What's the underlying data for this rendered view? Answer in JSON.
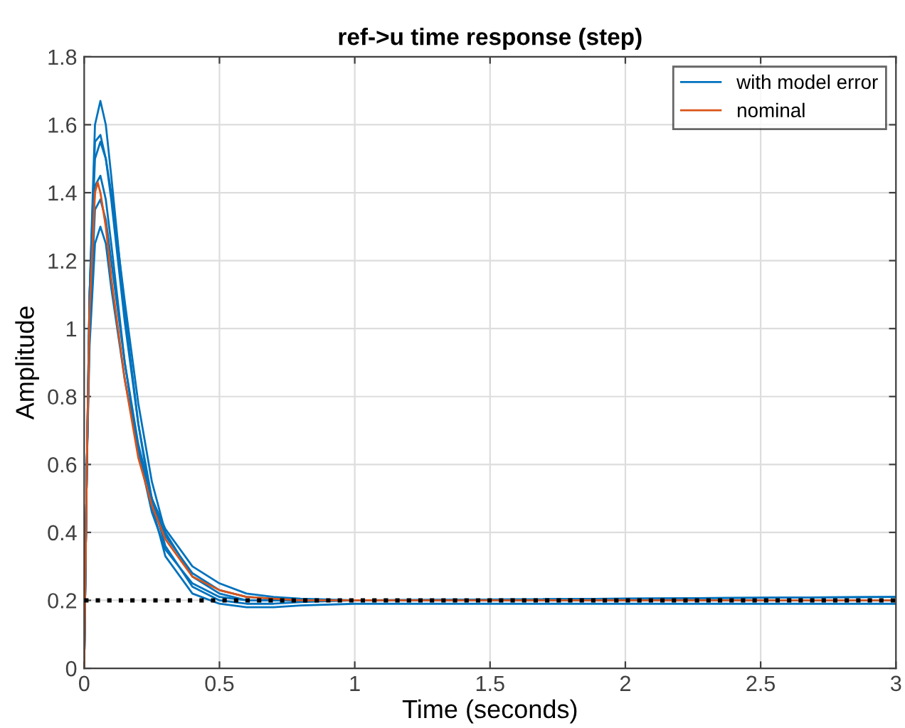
{
  "chart_data": {
    "type": "line",
    "title": "ref->u time response (step)",
    "xlabel": "Time (seconds)",
    "ylabel": "Amplitude",
    "xlim": [
      0,
      3
    ],
    "ylim": [
      0,
      1.8
    ],
    "xticks": [
      0,
      0.5,
      1,
      1.5,
      2,
      2.5,
      3
    ],
    "yticks": [
      0,
      0.2,
      0.4,
      0.6,
      0.8,
      1,
      1.2,
      1.4,
      1.6,
      1.8
    ],
    "grid": true,
    "legend": "top right",
    "marker": "none",
    "line_style": "solid",
    "series": [
      {
        "name": "with model error",
        "color": "#0072bd",
        "x": [
          0,
          0.01,
          0.02,
          0.04,
          0.06,
          0.08,
          0.1,
          0.15,
          0.2,
          0.25,
          0.3,
          0.4,
          0.5,
          0.6,
          0.7,
          0.8,
          1,
          3
        ],
        "values": [
          0,
          0.6,
          1.1,
          1.6,
          1.67,
          1.6,
          1.45,
          1.05,
          0.72,
          0.48,
          0.33,
          0.22,
          0.19,
          0.18,
          0.18,
          0.185,
          0.19,
          0.19
        ]
      },
      {
        "color": "#0072bd",
        "x": [
          0,
          0.01,
          0.02,
          0.04,
          0.06,
          0.08,
          0.1,
          0.15,
          0.2,
          0.25,
          0.3,
          0.4,
          0.5,
          0.6,
          0.7,
          0.8,
          1,
          3
        ],
        "values": [
          0,
          0.6,
          1.1,
          1.55,
          1.57,
          1.5,
          1.38,
          1.02,
          0.72,
          0.5,
          0.36,
          0.24,
          0.2,
          0.19,
          0.19,
          0.195,
          0.2,
          0.2
        ]
      },
      {
        "color": "#0072bd",
        "x": [
          0,
          0.01,
          0.02,
          0.04,
          0.06,
          0.08,
          0.1,
          0.15,
          0.2,
          0.25,
          0.3,
          0.4,
          0.5,
          0.6,
          0.7,
          0.8,
          1,
          3
        ],
        "values": [
          0,
          0.6,
          1.1,
          1.5,
          1.55,
          1.5,
          1.4,
          1.08,
          0.78,
          0.55,
          0.4,
          0.27,
          0.22,
          0.2,
          0.2,
          0.2,
          0.2,
          0.21
        ]
      },
      {
        "color": "#0072bd",
        "x": [
          0,
          0.01,
          0.02,
          0.04,
          0.06,
          0.08,
          0.1,
          0.15,
          0.2,
          0.25,
          0.3,
          0.4,
          0.5,
          0.6,
          0.7,
          0.8,
          1,
          3
        ],
        "values": [
          0,
          0.6,
          1.05,
          1.42,
          1.45,
          1.38,
          1.25,
          0.9,
          0.64,
          0.46,
          0.35,
          0.25,
          0.21,
          0.2,
          0.2,
          0.2,
          0.2,
          0.2
        ]
      },
      {
        "color": "#0072bd",
        "x": [
          0,
          0.01,
          0.02,
          0.04,
          0.06,
          0.08,
          0.1,
          0.15,
          0.2,
          0.25,
          0.3,
          0.4,
          0.5,
          0.6,
          0.7,
          0.8,
          1,
          3
        ],
        "values": [
          0,
          0.6,
          1.0,
          1.35,
          1.38,
          1.32,
          1.2,
          0.9,
          0.66,
          0.5,
          0.39,
          0.28,
          0.23,
          0.21,
          0.205,
          0.2,
          0.2,
          0.2
        ]
      },
      {
        "color": "#0072bd",
        "x": [
          0,
          0.01,
          0.02,
          0.04,
          0.06,
          0.08,
          0.1,
          0.15,
          0.2,
          0.25,
          0.3,
          0.4,
          0.5,
          0.6,
          0.7,
          0.8,
          1,
          3
        ],
        "values": [
          0,
          0.6,
          0.95,
          1.25,
          1.3,
          1.25,
          1.12,
          0.85,
          0.64,
          0.5,
          0.41,
          0.3,
          0.25,
          0.22,
          0.21,
          0.205,
          0.2,
          0.21
        ]
      },
      {
        "name": "nominal",
        "color": "#d95319",
        "x": [
          0,
          0.01,
          0.02,
          0.04,
          0.05,
          0.06,
          0.08,
          0.1,
          0.15,
          0.2,
          0.25,
          0.3,
          0.4,
          0.5,
          0.6,
          0.7,
          0.8,
          1,
          3
        ],
        "values": [
          0,
          0.6,
          1.05,
          1.4,
          1.43,
          1.4,
          1.3,
          1.15,
          0.85,
          0.62,
          0.48,
          0.38,
          0.27,
          0.23,
          0.21,
          0.205,
          0.2,
          0.2,
          0.2
        ]
      }
    ],
    "ref_lines": [
      {
        "axis": "y",
        "value": 0.2,
        "color": "#000000",
        "line_style": "dotted"
      }
    ]
  }
}
